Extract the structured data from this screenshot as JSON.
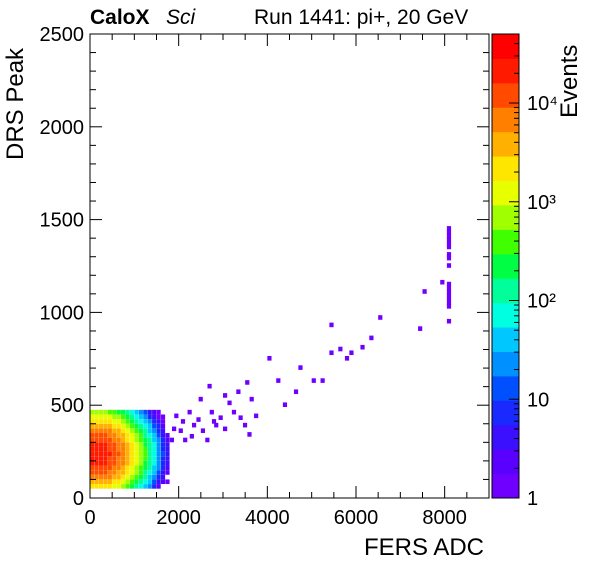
{
  "header": {
    "brand": "CaloX",
    "subtitle": "Sci",
    "run_info": "Run 1441: pi+, 20 GeV"
  },
  "chart_data": {
    "type": "heatmap",
    "xlabel": "FERS ADC",
    "ylabel": "DRS Peak",
    "zlabel": "Events",
    "xlim": [
      0,
      9000
    ],
    "ylim": [
      0,
      2500
    ],
    "zlim": [
      1,
      50000
    ],
    "zscale": "log",
    "grid": false,
    "x_ticks": [
      0,
      2000,
      4000,
      6000,
      8000
    ],
    "x_tick_labels": [
      "0",
      "2000",
      "4000",
      "6000",
      "8000"
    ],
    "y_ticks": [
      0,
      500,
      1000,
      1500,
      2000,
      2500
    ],
    "y_tick_labels": [
      "0",
      "500",
      "1000",
      "1500",
      "2000",
      "2500"
    ],
    "z_ticks": [
      1,
      10,
      100,
      1000,
      10000
    ],
    "z_tick_labels": [
      "1",
      "10",
      "10²",
      "10³",
      "10⁴"
    ],
    "palette": [
      "#6f00ff",
      "#5a00ff",
      "#3a10ff",
      "#1a2aff",
      "#0050ff",
      "#0090ff",
      "#00c8ff",
      "#00ffe0",
      "#00ff9a",
      "#00ff44",
      "#40ff00",
      "#a0ff00",
      "#e8ff00",
      "#ffe600",
      "#ffb000",
      "#ff8000",
      "#ff4a00",
      "#ff1a00",
      "#ff0000"
    ],
    "core": {
      "x_range": [
        0,
        1800
      ],
      "y_range": [
        50,
        460
      ]
    },
    "sparse_points": [
      [
        1800,
        300
      ],
      [
        1850,
        360
      ],
      [
        1900,
        430
      ],
      [
        2000,
        350
      ],
      [
        2050,
        400
      ],
      [
        2100,
        300
      ],
      [
        2200,
        450
      ],
      [
        2250,
        320
      ],
      [
        2300,
        380
      ],
      [
        2400,
        410
      ],
      [
        2450,
        520
      ],
      [
        2500,
        350
      ],
      [
        2600,
        300
      ],
      [
        2700,
        450
      ],
      [
        2750,
        400
      ],
      [
        2800,
        380
      ],
      [
        2900,
        420
      ],
      [
        3000,
        360
      ],
      [
        3100,
        500
      ],
      [
        3200,
        450
      ],
      [
        3300,
        560
      ],
      [
        3350,
        420
      ],
      [
        3450,
        380
      ],
      [
        3550,
        330
      ],
      [
        3600,
        520
      ],
      [
        3700,
        430
      ],
      [
        3500,
        610
      ],
      [
        3000,
        540
      ],
      [
        2650,
        590
      ],
      [
        4000,
        740
      ],
      [
        4200,
        620
      ],
      [
        4350,
        490
      ],
      [
        4600,
        560
      ],
      [
        4700,
        690
      ],
      [
        5000,
        620
      ],
      [
        5200,
        620
      ],
      [
        5400,
        920
      ],
      [
        5400,
        770
      ],
      [
        5600,
        790
      ],
      [
        5750,
        740
      ],
      [
        5850,
        770
      ],
      [
        6100,
        800
      ],
      [
        6300,
        850
      ],
      [
        6500,
        960
      ],
      [
        7400,
        900
      ],
      [
        7500,
        1100
      ],
      [
        7900,
        1150
      ]
    ],
    "column_x": 8050,
    "column_points": [
      940,
      1020,
      1040,
      1060,
      1080,
      1100,
      1120,
      1140,
      1240,
      1280,
      1300,
      1340,
      1360,
      1380,
      1400,
      1420,
      1440
    ]
  }
}
